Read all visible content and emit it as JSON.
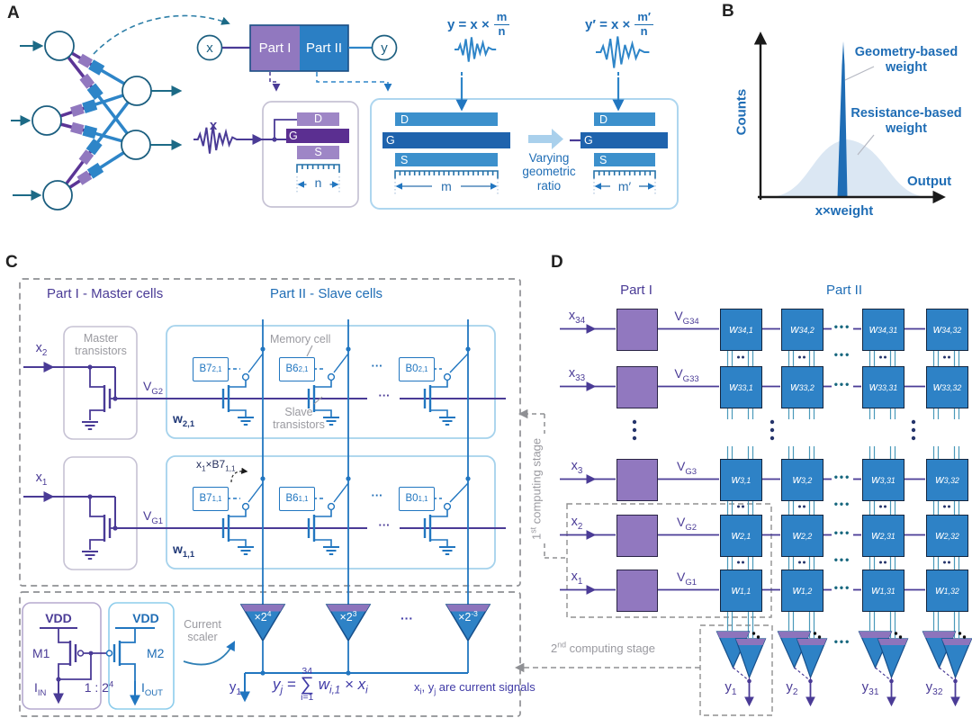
{
  "panel_a": {
    "label": "A",
    "input_node": "x",
    "output_node": "y",
    "block_part1": "Part I",
    "block_part2": "Part II",
    "eq1": {
      "lhs": "y = x ×",
      "num": "m",
      "den": "n"
    },
    "eq2": {
      "lhs": "y′ = x ×",
      "num": "m′",
      "den": "n"
    },
    "input_signal": "x",
    "master_cell": {
      "d": "D",
      "g": "G",
      "s": "S",
      "dim": "n"
    },
    "slave_cell_wide": {
      "d": "D",
      "g": "G",
      "s": "S",
      "dim": "m"
    },
    "slave_cell_narrow": {
      "d": "D",
      "g": "G",
      "s": "S",
      "dim": "m′"
    },
    "arrow_caption": "Varying geometric ratio"
  },
  "panel_b": {
    "label": "B",
    "ylabel": "Counts",
    "xlabel": "Output",
    "x_annotation": "x×weight",
    "legend_spike": "Geometry-based weight",
    "legend_gauss": "Resistance-based weight"
  },
  "panel_c": {
    "label": "C",
    "part1_title": "Part I - Master cells",
    "part2_title": "Part II - Slave cells",
    "master_caption": "Master transistors",
    "memory_caption": "Memory cell",
    "slave_caption": "Slave transistors",
    "rows": [
      {
        "x": "x_{2}",
        "vg": "V_{G2}",
        "w": "w_{2,1}",
        "bits": [
          "B7_{2,1}",
          "B6_{2,1}",
          "B0_{2,1}"
        ]
      },
      {
        "x": "x_{1}",
        "vg": "V_{G1}",
        "w": "w_{1,1}",
        "bits": [
          "B7_{1,1}",
          "B6_{1,1}",
          "B0_{1,1}"
        ]
      }
    ],
    "dots": "···",
    "bit_product_annotation": "x_{1}×B7_{1,1}",
    "mirror": {
      "vdd_left": "VDD",
      "vdd_right": "VDD",
      "m1": "M1",
      "m2": "M2",
      "i_in": "I_{IN}",
      "i_out": "I_{OUT}",
      "ratio": "1 : 2^{4}"
    },
    "scaler_caption": "Current scaler",
    "scalers": [
      "×2^{4}",
      "×2^{3}",
      "×2^{-3}"
    ],
    "output": "y_{1}",
    "equation": {
      "lhs": "y_{j} =",
      "sum_top": "34",
      "sum": "∑",
      "sum_bottom": "i=1",
      "rhs": "w_{i,1} × x_{i}"
    },
    "note": "x_{i}, y_{j} are current signals"
  },
  "panel_d": {
    "label": "D",
    "part1_title": "Part I",
    "part2_title": "Part II",
    "stage1": "1^{st} computing stage",
    "stage2": "2^{nd} computing stage",
    "rows": [
      {
        "x": "x_{34}",
        "vg": "V_{G34}",
        "w": [
          "w_{34,1}",
          "w_{34,2}",
          "w_{34,31}",
          "w_{34,32}"
        ]
      },
      {
        "x": "x_{33}",
        "vg": "V_{G33}",
        "w": [
          "w_{33,1}",
          "w_{33,2}",
          "w_{33,31}",
          "w_{33,32}"
        ]
      },
      {
        "x": "x_{3}",
        "vg": "V_{G3}",
        "w": [
          "w_{3,1}",
          "w_{3,2}",
          "w_{3,31}",
          "w_{3,32}"
        ]
      },
      {
        "x": "x_{2}",
        "vg": "V_{G2}",
        "w": [
          "w_{2,1}",
          "w_{2,2}",
          "w_{2,31}",
          "w_{2,32}"
        ]
      },
      {
        "x": "x_{1}",
        "vg": "V_{G1}",
        "w": [
          "w_{1,1}",
          "w_{1,2}",
          "w_{1,31}",
          "w_{1,32}"
        ]
      }
    ],
    "outputs": [
      "y_{1}",
      "y_{2}",
      "y_{31}",
      "y_{32}"
    ],
    "dots": "•••"
  },
  "colors": {
    "purple_fill": "#9178bf",
    "dark_purple": "#5b2f91",
    "purple_line": "#4a3b96",
    "blue_fill": "#2e82c6",
    "dark_blue": "#1f63ad",
    "blue_line": "#2176c0",
    "teal": "#1c6a86",
    "light_blue_box": "#a5d2ec",
    "gray": "#9a9aa0",
    "spike": "#1f6db5",
    "gauss": "#dbe7f3"
  }
}
